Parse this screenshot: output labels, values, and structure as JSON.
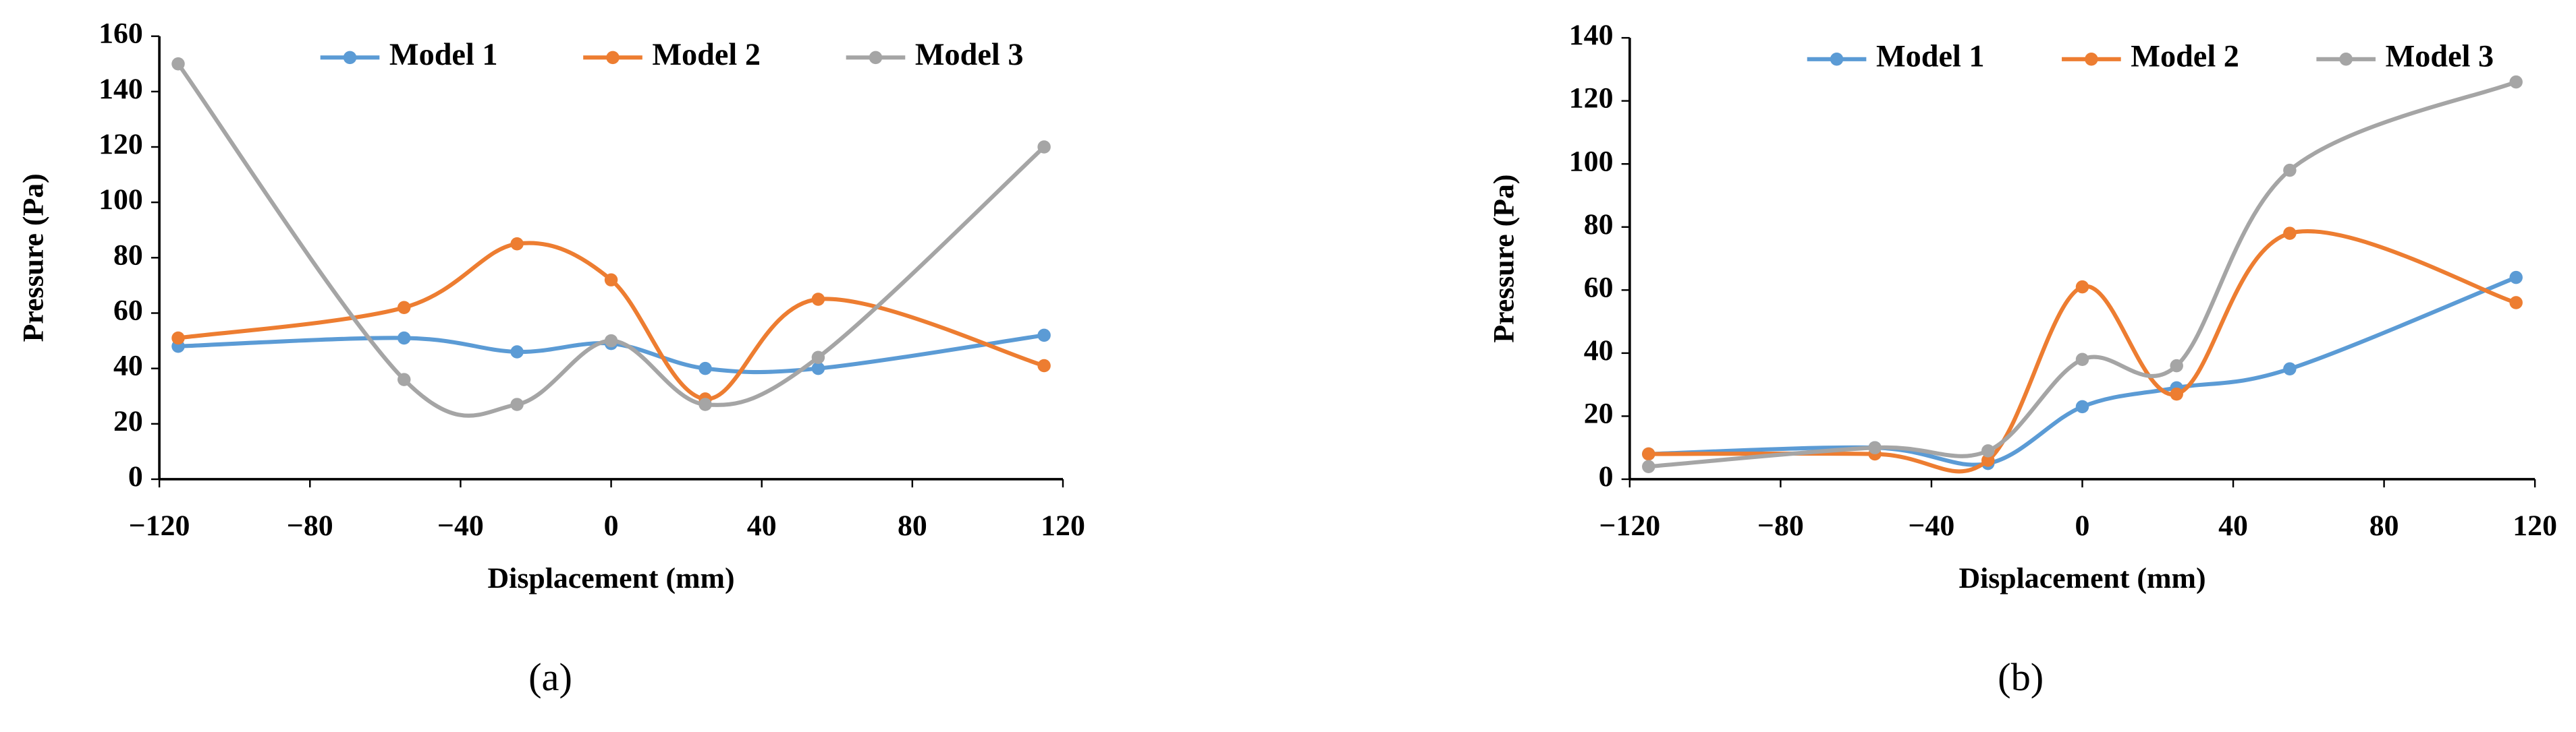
{
  "chart_data": [
    {
      "type": "line",
      "caption": "(a)",
      "xlabel": "Displacement (mm)",
      "ylabel": "Pressure (Pa)",
      "x": [
        -115,
        -55,
        -25,
        0,
        25,
        55,
        115
      ],
      "series": [
        {
          "name": "Model 1",
          "color": "#5b9bd5",
          "values": [
            48,
            51,
            46,
            49,
            40,
            40,
            52
          ]
        },
        {
          "name": "Model 2",
          "color": "#ed7d31",
          "values": [
            51,
            62,
            85,
            72,
            29,
            65,
            41
          ]
        },
        {
          "name": "Model 3",
          "color": "#a5a5a5",
          "values": [
            150,
            36,
            27,
            50,
            27,
            44,
            120
          ]
        }
      ],
      "xlim": [
        -120,
        120
      ],
      "xticks": [
        {
          "value": -120,
          "label": "−120"
        },
        {
          "value": -80,
          "label": "−80"
        },
        {
          "value": -40,
          "label": "−40"
        },
        0,
        40,
        80,
        120
      ],
      "ylim": [
        0,
        160
      ],
      "yticks": [
        0,
        20,
        40,
        60,
        80,
        100,
        120,
        140,
        160
      ],
      "smooth": true,
      "grid": false,
      "legend": "top"
    },
    {
      "type": "line",
      "caption": "(b)",
      "xlabel": "Displacement (mm)",
      "ylabel": "Pressure (Pa)",
      "x": [
        -115,
        -55,
        -25,
        0,
        25,
        55,
        115
      ],
      "series": [
        {
          "name": "Model 1",
          "color": "#5b9bd5",
          "values": [
            8,
            10,
            5,
            23,
            29,
            35,
            64
          ]
        },
        {
          "name": "Model 2",
          "color": "#ed7d31",
          "values": [
            8,
            8,
            6,
            61,
            27,
            78,
            56
          ]
        },
        {
          "name": "Model 3",
          "color": "#a5a5a5",
          "values": [
            4,
            10,
            9,
            38,
            36,
            98,
            126
          ]
        }
      ],
      "xlim": [
        -120,
        120
      ],
      "xticks": [
        {
          "value": -120,
          "label": "−120"
        },
        {
          "value": -80,
          "label": "−80"
        },
        {
          "value": -40,
          "label": "−40"
        },
        0,
        40,
        80,
        120
      ],
      "ylim": [
        0,
        140
      ],
      "yticks": [
        0,
        20,
        40,
        60,
        80,
        100,
        120,
        140
      ],
      "smooth": true,
      "grid": false,
      "legend": "top"
    }
  ]
}
